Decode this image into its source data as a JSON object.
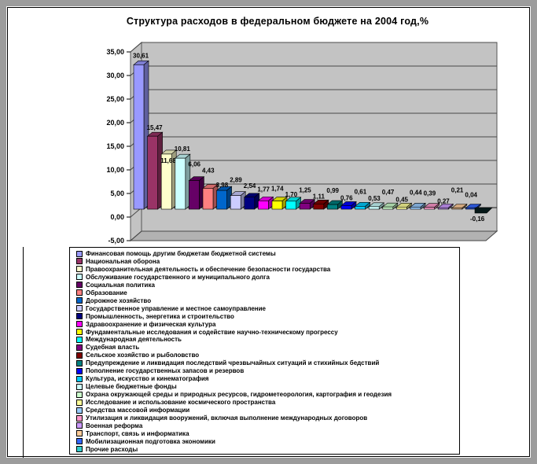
{
  "chart": {
    "title": "Структура расходов в федеральном бюджете на 2004 год,%"
  },
  "chart_data": {
    "type": "bar",
    "style": "3d-column",
    "title": "Структура расходов в федеральном бюджете на 2004 год,%",
    "unit": "%",
    "ylim": [
      -5,
      35
    ],
    "grid": true,
    "legend_position": "bottom",
    "y_ticks": [
      "35,00",
      "30,00",
      "25,00",
      "20,00",
      "15,00",
      "10,00",
      "5,00",
      "0,00",
      "-5,00"
    ],
    "series": [
      {
        "name": "Финансовая помощь другим бюджетам бюджетной системы",
        "value": 30.61,
        "label": "30,61",
        "color": "#9999FF"
      },
      {
        "name": "Национальная оборона",
        "value": 15.47,
        "label": "15,47",
        "color": "#993366"
      },
      {
        "name": "Правоохранительная деятельность и обеспечение безопасности государства",
        "value": 11.68,
        "label": "11,68",
        "color": "#FFFFCC"
      },
      {
        "name": "Обслуживание государственного и муниципального долга",
        "value": 10.81,
        "label": "10,81",
        "color": "#CCFFFF"
      },
      {
        "name": "Социальная политика",
        "value": 6.06,
        "label": "6,06",
        "color": "#660066"
      },
      {
        "name": "Образование",
        "value": 4.43,
        "label": "4,43",
        "color": "#FF8080"
      },
      {
        "name": "Дорожное хозяйство",
        "value": 3.98,
        "label": "3,98",
        "color": "#0066CC"
      },
      {
        "name": "Государственное управление и местное самоуправление",
        "value": 2.89,
        "label": "2,89",
        "color": "#CCCCFF"
      },
      {
        "name": "Промышленность, энергетика и строительство",
        "value": 2.54,
        "label": "2,54",
        "color": "#000080"
      },
      {
        "name": "Здравоохранение и физическая культура",
        "value": 1.77,
        "label": "1,77",
        "color": "#FF00FF"
      },
      {
        "name": "Фундаментальные исследования и содействие научно-техническому прогрессу",
        "value": 1.74,
        "label": "1,74",
        "color": "#FFFF00"
      },
      {
        "name": "Международная деятельность",
        "value": 1.7,
        "label": "1,70",
        "color": "#00FFFF"
      },
      {
        "name": "Судебная власть",
        "value": 1.25,
        "label": "1,25",
        "color": "#800080"
      },
      {
        "name": "Сельское хозяйство и рыболовство",
        "value": 1.11,
        "label": "1,11",
        "color": "#800000"
      },
      {
        "name": "Предупреждение и ликвидация последствий чрезвычайных ситуаций и стихийных бедствий",
        "value": 0.99,
        "label": "0,99",
        "color": "#008080"
      },
      {
        "name": "Пополнение государственных запасов и резервов",
        "value": 0.76,
        "label": "0,76",
        "color": "#0000FF"
      },
      {
        "name": "Культура, искусство и кинематография",
        "value": 0.61,
        "label": "0,61",
        "color": "#00CCFF"
      },
      {
        "name": "Целевые бюджетные фонды",
        "value": 0.53,
        "label": "0,53",
        "color": "#CCFFFF"
      },
      {
        "name": "Охрана окружающей среды и природных ресурсов, гидрометеорология, картография и геодезия",
        "value": 0.47,
        "label": "0,47",
        "color": "#CCFFCC"
      },
      {
        "name": "Исследование и использование космического пространства",
        "value": 0.45,
        "label": "0,45",
        "color": "#FFFF99"
      },
      {
        "name": "Средства массовой информации",
        "value": 0.44,
        "label": "0,44",
        "color": "#99CCFF"
      },
      {
        "name": "Утилизация и ликвидация вооружений, включая выполнение международных договоров",
        "value": 0.39,
        "label": "0,39",
        "color": "#FF99CC"
      },
      {
        "name": "Военная реформа",
        "value": 0.27,
        "label": "0,27",
        "color": "#CC99FF"
      },
      {
        "name": "Транспорт, связь и информатика",
        "value": 0.21,
        "label": "0,21",
        "color": "#FFCC99"
      },
      {
        "name": "Мобилизационная подготовка экономики",
        "value": 0.04,
        "label": "0,04",
        "color": "#3366FF"
      },
      {
        "name": "Прочие расходы",
        "value": -0.16,
        "label": "-0,16",
        "color": "#33CCCC"
      }
    ]
  }
}
